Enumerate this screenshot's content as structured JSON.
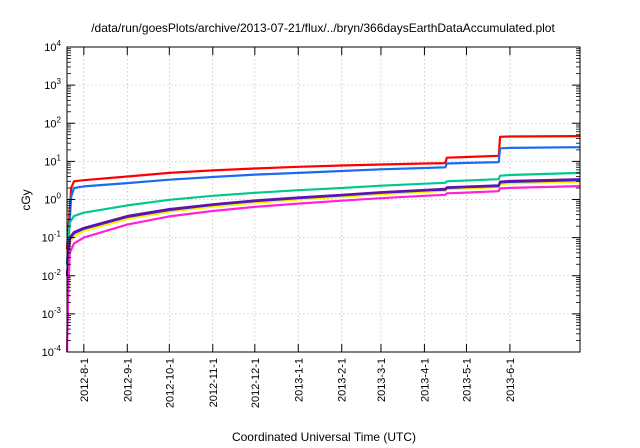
{
  "chart_data": {
    "type": "line",
    "title": "/data/run/goesPlots/archive/2013-07-21/flux/../bryn/366daysEarthDataAccumulated.plot",
    "xlabel": "Coordinated Universal Time (UTC)",
    "ylabel": "cGy",
    "y_scale": "log",
    "ylim": [
      0.0001,
      10000
    ],
    "xlim": [
      "2012-07-20",
      "2013-07-21"
    ],
    "grid": true,
    "x_tick_labels": [
      "2012-8-1",
      "2012-9-1",
      "2012-10-1",
      "2012-11-1",
      "2012-12-1",
      "2013-1-1",
      "2013-2-1",
      "2013-3-1",
      "2013-4-1",
      "2013-5-1",
      "2013-6-1"
    ],
    "y_ticks": [
      {
        "value": 0.0001,
        "base": "10",
        "exp": "-4"
      },
      {
        "value": 0.001,
        "base": "10",
        "exp": "-3"
      },
      {
        "value": 0.01,
        "base": "10",
        "exp": "-2"
      },
      {
        "value": 0.1,
        "base": "10",
        "exp": "-1"
      },
      {
        "value": 1,
        "base": "10",
        "exp": "0"
      },
      {
        "value": 10,
        "base": "10",
        "exp": "1"
      },
      {
        "value": 100,
        "base": "10",
        "exp": "2"
      },
      {
        "value": 1000,
        "base": "10",
        "exp": "3"
      },
      {
        "value": 10000,
        "base": "10",
        "exp": "4"
      }
    ],
    "series": [
      {
        "color": "#ff0000",
        "points": [
          [
            "2012-07-20",
            0.05
          ],
          [
            "2012-07-23",
            2.0
          ],
          [
            "2012-07-25",
            3.0
          ],
          [
            "2012-08-01",
            3.2
          ],
          [
            "2012-09-01",
            4.0
          ],
          [
            "2012-10-01",
            5.0
          ],
          [
            "2012-11-01",
            5.8
          ],
          [
            "2012-12-01",
            6.5
          ],
          [
            "2013-01-01",
            7.2
          ],
          [
            "2013-02-01",
            7.8
          ],
          [
            "2013-03-01",
            8.3
          ],
          [
            "2013-04-01",
            8.8
          ],
          [
            "2013-04-16",
            9.0
          ],
          [
            "2013-04-17",
            12.5
          ],
          [
            "2013-05-01",
            13.0
          ],
          [
            "2013-05-24",
            14.0
          ],
          [
            "2013-05-25",
            44.0
          ],
          [
            "2013-06-01",
            45.0
          ],
          [
            "2013-07-21",
            46.0
          ]
        ]
      },
      {
        "color": "#1a6bf0",
        "points": [
          [
            "2012-07-20",
            0.02
          ],
          [
            "2012-07-23",
            1.2
          ],
          [
            "2012-07-25",
            2.0
          ],
          [
            "2012-08-01",
            2.2
          ],
          [
            "2012-09-01",
            2.7
          ],
          [
            "2012-10-01",
            3.3
          ],
          [
            "2012-11-01",
            3.9
          ],
          [
            "2012-12-01",
            4.5
          ],
          [
            "2013-01-01",
            5.0
          ],
          [
            "2013-02-01",
            5.6
          ],
          [
            "2013-03-01",
            6.2
          ],
          [
            "2013-04-01",
            6.7
          ],
          [
            "2013-04-16",
            7.0
          ],
          [
            "2013-04-17",
            8.8
          ],
          [
            "2013-05-01",
            9.1
          ],
          [
            "2013-05-24",
            9.5
          ],
          [
            "2013-05-25",
            22.0
          ],
          [
            "2013-06-01",
            22.5
          ],
          [
            "2013-07-21",
            23.5
          ]
        ]
      },
      {
        "color": "#00c890",
        "points": [
          [
            "2012-07-20",
            0.02
          ],
          [
            "2012-07-22",
            0.25
          ],
          [
            "2012-07-25",
            0.37
          ],
          [
            "2012-08-01",
            0.45
          ],
          [
            "2012-09-01",
            0.7
          ],
          [
            "2012-10-01",
            0.98
          ],
          [
            "2012-11-01",
            1.25
          ],
          [
            "2012-12-01",
            1.5
          ],
          [
            "2013-01-01",
            1.75
          ],
          [
            "2013-02-01",
            2.0
          ],
          [
            "2013-03-01",
            2.3
          ],
          [
            "2013-04-01",
            2.6
          ],
          [
            "2013-04-16",
            2.75
          ],
          [
            "2013-04-17",
            3.0
          ],
          [
            "2013-05-01",
            3.15
          ],
          [
            "2013-05-24",
            3.4
          ],
          [
            "2013-05-25",
            4.2
          ],
          [
            "2013-06-01",
            4.4
          ],
          [
            "2013-07-21",
            5.0
          ]
        ]
      },
      {
        "color": "#ffee00",
        "points": [
          [
            "2012-07-20",
            0.01
          ],
          [
            "2012-07-22",
            0.07
          ],
          [
            "2012-07-25",
            0.11
          ],
          [
            "2012-08-01",
            0.15
          ],
          [
            "2012-09-01",
            0.31
          ],
          [
            "2012-10-01",
            0.48
          ],
          [
            "2012-11-01",
            0.65
          ],
          [
            "2012-12-01",
            0.82
          ],
          [
            "2013-01-01",
            1.0
          ],
          [
            "2013-02-01",
            1.18
          ],
          [
            "2013-03-01",
            1.38
          ],
          [
            "2013-04-01",
            1.58
          ],
          [
            "2013-04-16",
            1.68
          ],
          [
            "2013-04-17",
            1.85
          ],
          [
            "2013-05-01",
            1.95
          ],
          [
            "2013-05-24",
            2.1
          ],
          [
            "2013-05-25",
            2.55
          ],
          [
            "2013-06-01",
            2.65
          ],
          [
            "2013-07-21",
            2.95
          ]
        ]
      },
      {
        "color": "#2233cc",
        "points": [
          [
            "2012-07-20",
            0.01
          ],
          [
            "2012-07-22",
            0.09
          ],
          [
            "2012-07-25",
            0.13
          ],
          [
            "2012-08-01",
            0.17
          ],
          [
            "2012-09-01",
            0.35
          ],
          [
            "2012-10-01",
            0.53
          ],
          [
            "2012-11-01",
            0.72
          ],
          [
            "2012-12-01",
            0.9
          ],
          [
            "2013-01-01",
            1.08
          ],
          [
            "2013-02-01",
            1.28
          ],
          [
            "2013-03-01",
            1.5
          ],
          [
            "2013-04-01",
            1.72
          ],
          [
            "2013-04-16",
            1.82
          ],
          [
            "2013-04-17",
            2.0
          ],
          [
            "2013-05-01",
            2.1
          ],
          [
            "2013-05-24",
            2.25
          ],
          [
            "2013-05-25",
            2.8
          ],
          [
            "2013-06-01",
            2.9
          ],
          [
            "2013-07-21",
            3.2
          ]
        ]
      },
      {
        "color": "#6a0dad",
        "points": [
          [
            "2012-07-20",
            0.01
          ],
          [
            "2012-07-22",
            0.1
          ],
          [
            "2012-07-25",
            0.14
          ],
          [
            "2012-08-01",
            0.18
          ],
          [
            "2012-09-01",
            0.37
          ],
          [
            "2012-10-01",
            0.56
          ],
          [
            "2012-11-01",
            0.75
          ],
          [
            "2012-12-01",
            0.94
          ],
          [
            "2013-01-01",
            1.13
          ],
          [
            "2013-02-01",
            1.33
          ],
          [
            "2013-03-01",
            1.55
          ],
          [
            "2013-04-01",
            1.78
          ],
          [
            "2013-04-16",
            1.9
          ],
          [
            "2013-04-17",
            2.08
          ],
          [
            "2013-05-01",
            2.18
          ],
          [
            "2013-05-24",
            2.35
          ],
          [
            "2013-05-25",
            2.95
          ],
          [
            "2013-06-01",
            3.05
          ],
          [
            "2013-07-21",
            3.4
          ]
        ]
      },
      {
        "color": "#ff22dd",
        "points": [
          [
            "2012-07-20",
            0.0001
          ],
          [
            "2012-07-21",
            0.005
          ],
          [
            "2012-07-22",
            0.04
          ],
          [
            "2012-07-25",
            0.07
          ],
          [
            "2012-08-01",
            0.1
          ],
          [
            "2012-09-01",
            0.22
          ],
          [
            "2012-10-01",
            0.36
          ],
          [
            "2012-11-01",
            0.5
          ],
          [
            "2012-12-01",
            0.64
          ],
          [
            "2013-01-01",
            0.78
          ],
          [
            "2013-02-01",
            0.93
          ],
          [
            "2013-03-01",
            1.08
          ],
          [
            "2013-04-01",
            1.25
          ],
          [
            "2013-04-16",
            1.33
          ],
          [
            "2013-04-17",
            1.45
          ],
          [
            "2013-05-01",
            1.52
          ],
          [
            "2013-05-24",
            1.65
          ],
          [
            "2013-05-25",
            1.95
          ],
          [
            "2013-06-01",
            2.02
          ],
          [
            "2013-07-21",
            2.25
          ]
        ]
      }
    ]
  }
}
